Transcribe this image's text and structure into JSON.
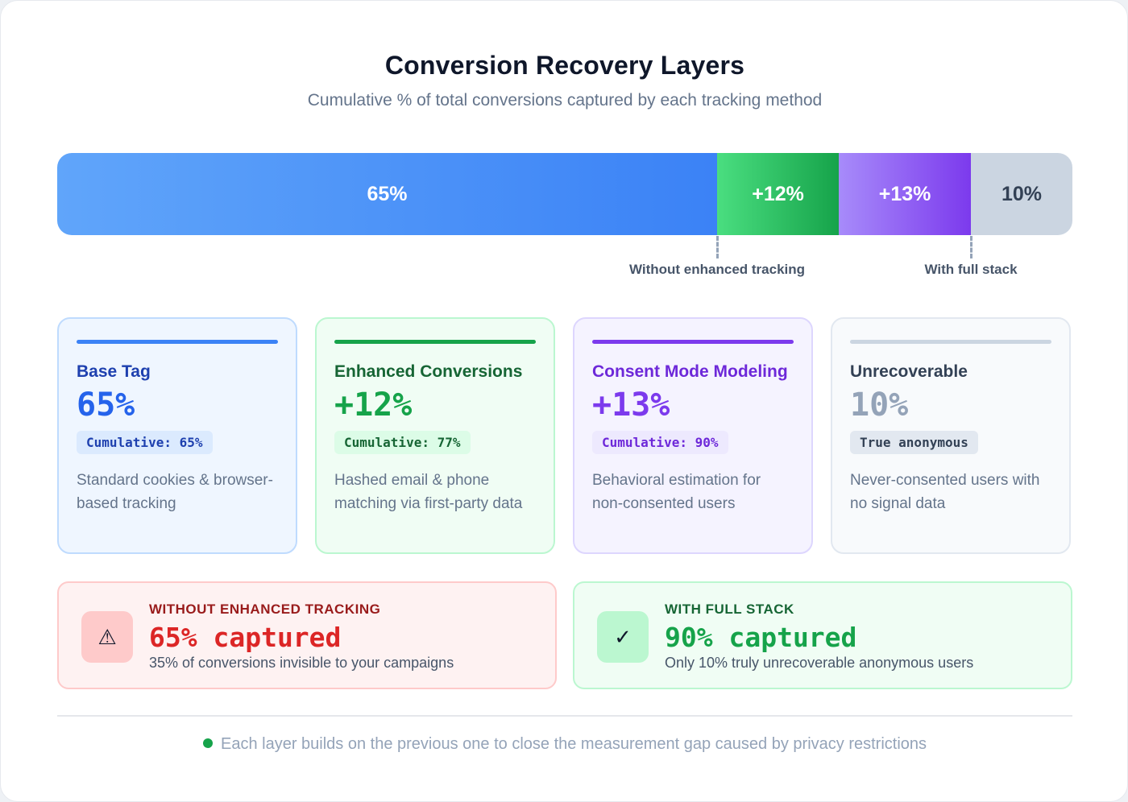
{
  "title": "Conversion Recovery Layers",
  "subtitle": "Cumulative % of total conversions captured by each tracking method",
  "chart_data": {
    "type": "bar",
    "orientation": "horizontal-stacked",
    "title": "Conversion Recovery Layers",
    "subtitle": "Cumulative % of total conversions captured by each tracking method",
    "categories": [
      "Base Tag",
      "Enhanced Conversions",
      "Consent Mode Modeling",
      "Unrecoverable"
    ],
    "values": [
      65,
      12,
      13,
      10
    ],
    "value_labels": [
      "65%",
      "+12%",
      "+13%",
      "10%"
    ],
    "colors": [
      "#3b82f6",
      "#16a34a",
      "#7c3aed",
      "#cbd5e1"
    ],
    "xlim": [
      0,
      100
    ],
    "markers": [
      {
        "label": "Without enhanced tracking",
        "value": 65
      },
      {
        "label": "With full stack",
        "value": 90
      }
    ]
  },
  "layers": [
    {
      "name": "Base Tag",
      "pct": "65%",
      "cumulative": "Cumulative: 65%",
      "desc": "Standard cookies & browser-based tracking"
    },
    {
      "name": "Enhanced Conversions",
      "pct": "+12%",
      "cumulative": "Cumulative: 77%",
      "desc": "Hashed email & phone matching via first-party data"
    },
    {
      "name": "Consent Mode Modeling",
      "pct": "+13%",
      "cumulative": "Cumulative: 90%",
      "desc": "Behavioral estimation for non-consented users"
    },
    {
      "name": "Unrecoverable",
      "pct": "10%",
      "cumulative": "True anonymous",
      "desc": "Never-consented users with no signal data"
    }
  ],
  "summary": {
    "without": {
      "icon": "warning-icon",
      "glyph": "⚠",
      "label": "WITHOUT ENHANCED TRACKING",
      "value": "65% captured",
      "desc": "35% of conversions invisible to your campaigns"
    },
    "full": {
      "icon": "check-icon",
      "glyph": "✓",
      "label": "WITH FULL STACK",
      "value": "90% captured",
      "desc": "Only 10% truly unrecoverable anonymous users"
    }
  },
  "footer": "Each layer builds on the previous one to close the measurement gap caused by privacy restrictions"
}
